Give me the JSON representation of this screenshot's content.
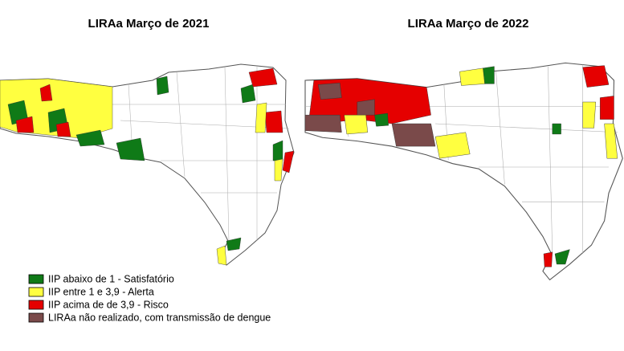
{
  "maps": [
    {
      "title": "LIRAa Março  de 2021"
    },
    {
      "title": "LIRAa Março de 2022"
    }
  ],
  "legend": [
    {
      "label": "IIP abaixo de 1 - Satisfatório",
      "color": "#0f7a17"
    },
    {
      "label": "IIP entre 1 e 3,9 - Alerta",
      "color": "#ffff40"
    },
    {
      "label": "IIP acima de de 3,9 - Risco",
      "color": "#e50000"
    },
    {
      "label": "LIRAa não realizado, com transmissão de dengue",
      "color": "#7a4a4a"
    }
  ]
}
